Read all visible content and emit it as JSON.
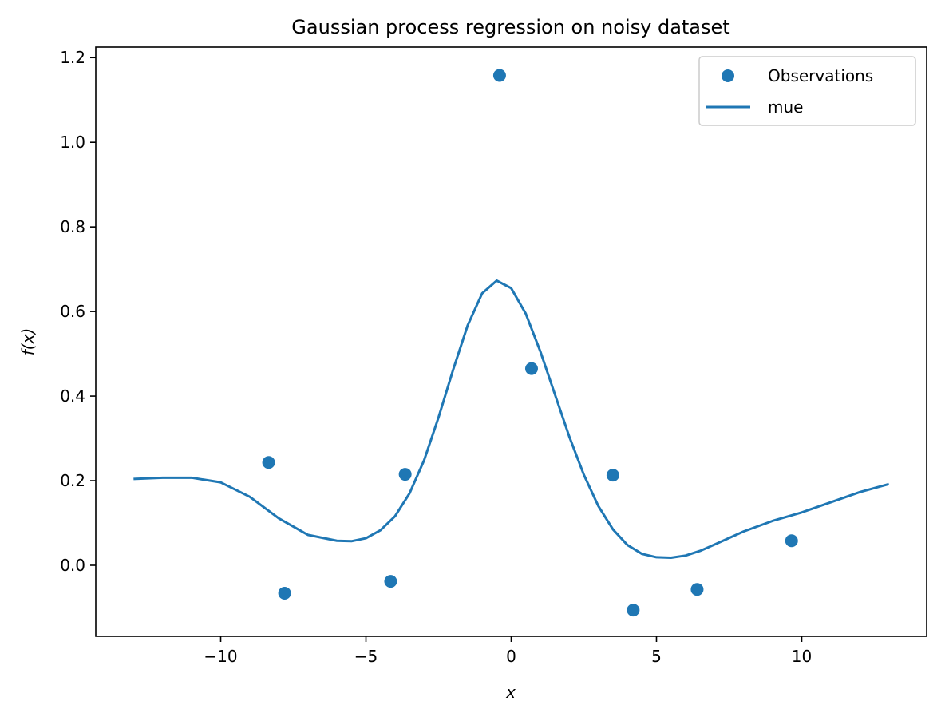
{
  "chart_data": {
    "type": "scatter",
    "title": "Gaussian process regression on noisy dataset",
    "xlabel": "x",
    "ylabel": "f(x)",
    "xlim": [
      -14.3,
      14.3
    ],
    "ylim": [
      -0.168,
      1.225
    ],
    "x_ticks": [
      -10,
      -5,
      0,
      5,
      10
    ],
    "x_tick_labels": [
      "−10",
      "−5",
      "0",
      "5",
      "10"
    ],
    "y_ticks": [
      0.0,
      0.2,
      0.4,
      0.6,
      0.8,
      1.0,
      1.2
    ],
    "y_tick_labels": [
      "0.0",
      "0.2",
      "0.4",
      "0.6",
      "0.8",
      "1.0",
      "1.2"
    ],
    "grid": false,
    "legend_position": "top-right",
    "series": [
      {
        "name": "Observations",
        "kind": "scatter",
        "color": "#1f77b4",
        "x": [
          -8.35,
          -7.8,
          -4.15,
          -3.65,
          -0.4,
          0.7,
          3.5,
          4.2,
          6.4,
          9.65
        ],
        "y": [
          0.243,
          -0.066,
          -0.038,
          0.215,
          1.158,
          0.465,
          0.213,
          -0.106,
          -0.057,
          0.058
        ]
      },
      {
        "name": "mue",
        "kind": "line",
        "color": "#1f77b4",
        "x": [
          -13.0,
          -12.0,
          -11.0,
          -10.0,
          -9.0,
          -8.0,
          -7.0,
          -6.0,
          -5.5,
          -5.0,
          -4.5,
          -4.0,
          -3.5,
          -3.0,
          -2.5,
          -2.0,
          -1.5,
          -1.0,
          -0.5,
          0.0,
          0.5,
          1.0,
          1.5,
          2.0,
          2.5,
          3.0,
          3.5,
          4.0,
          4.5,
          5.0,
          5.5,
          6.0,
          6.5,
          7.0,
          8.0,
          9.0,
          10.0,
          11.0,
          12.0,
          13.0
        ],
        "y": [
          0.204,
          0.207,
          0.207,
          0.196,
          0.162,
          0.111,
          0.072,
          0.058,
          0.057,
          0.064,
          0.083,
          0.116,
          0.17,
          0.248,
          0.35,
          0.462,
          0.567,
          0.643,
          0.673,
          0.655,
          0.595,
          0.506,
          0.405,
          0.304,
          0.214,
          0.14,
          0.085,
          0.048,
          0.027,
          0.019,
          0.018,
          0.023,
          0.034,
          0.049,
          0.08,
          0.105,
          0.125,
          0.149,
          0.173,
          0.192
        ]
      }
    ]
  }
}
